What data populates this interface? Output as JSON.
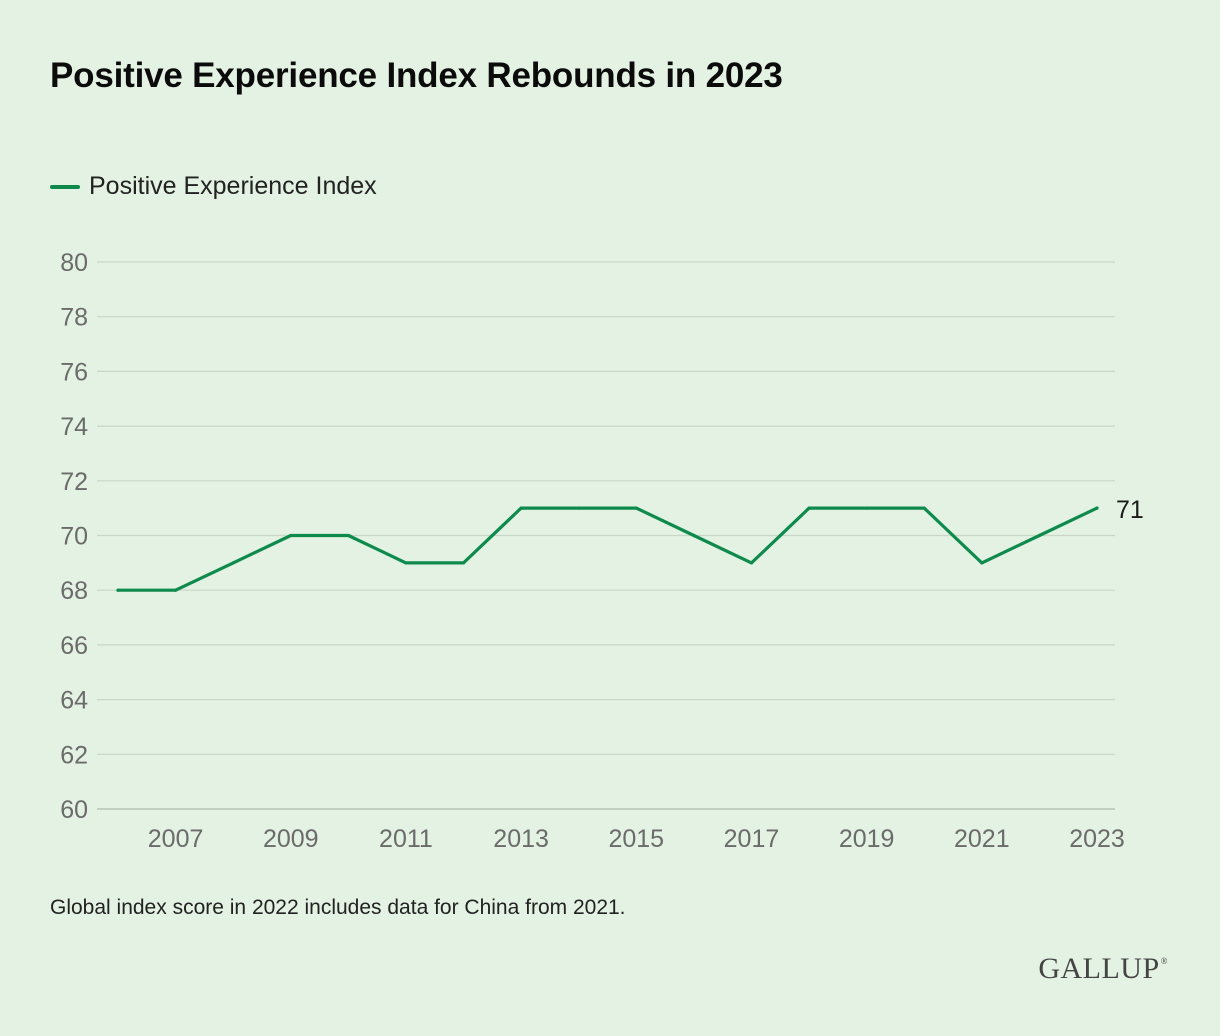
{
  "title": "Positive Experience Index Rebounds in 2023",
  "legend_label": "Positive Experience Index",
  "footnote": "Global index score in 2022 includes data for China from 2021.",
  "logo_text": "GALLUP",
  "logo_mark": "®",
  "colors": {
    "background": "#e3f2e2",
    "line": "#0e8a4c",
    "grid": "#c9d6c8",
    "tick_text": "#6b6b6b"
  },
  "chart_data": {
    "type": "line",
    "x": [
      2006,
      2007,
      2008,
      2009,
      2010,
      2011,
      2012,
      2013,
      2014,
      2015,
      2016,
      2017,
      2018,
      2019,
      2020,
      2021,
      2022,
      2023
    ],
    "series": [
      {
        "name": "Positive Experience Index",
        "values": [
          68,
          68,
          69,
          70,
          70,
          69,
          69,
          71,
          71,
          71,
          70,
          69,
          71,
          71,
          71,
          69,
          70,
          71
        ]
      }
    ],
    "x_ticks": [
      2007,
      2009,
      2011,
      2013,
      2015,
      2017,
      2019,
      2021,
      2023
    ],
    "y_ticks": [
      60,
      62,
      64,
      66,
      68,
      70,
      72,
      74,
      76,
      78,
      80
    ],
    "ylim": [
      60,
      80
    ],
    "xlim": [
      2006,
      2023
    ],
    "end_label": "71",
    "grid": "horizontal",
    "legend_position": "top-left"
  }
}
